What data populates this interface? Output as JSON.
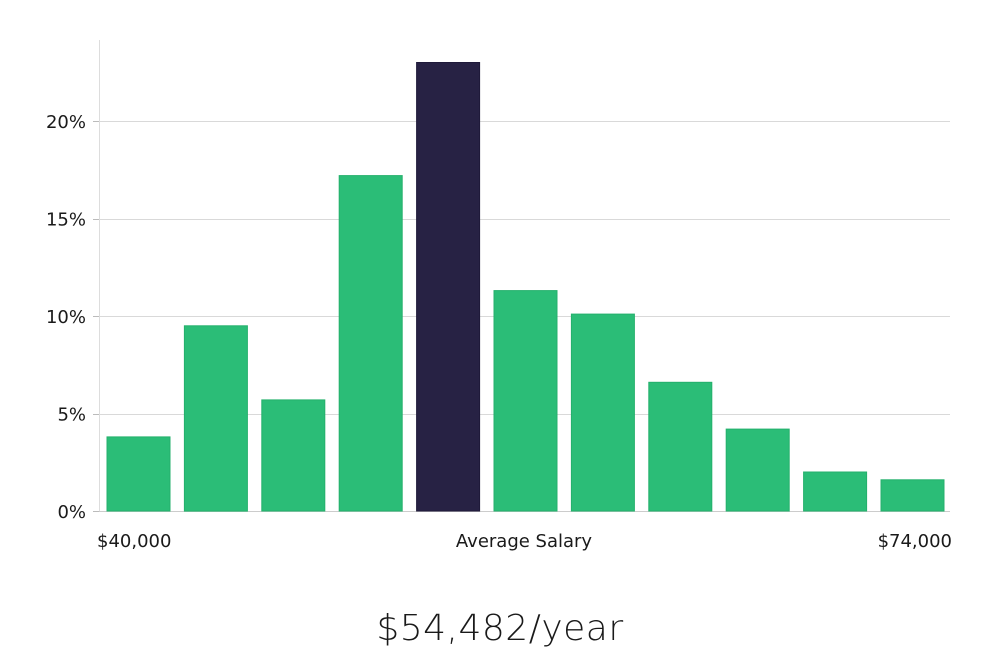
{
  "colors": {
    "bar": "#2bbd77",
    "highlight_bar": "#272244",
    "grid": "#d9d9d9",
    "axis": "#cccccc",
    "text": "#1a1a1a"
  },
  "chart_data": {
    "type": "bar",
    "categories": [
      "1",
      "2",
      "3",
      "4",
      "5",
      "6",
      "7",
      "8",
      "9",
      "10",
      "11"
    ],
    "values": [
      3.8,
      9.5,
      5.7,
      17.2,
      23.0,
      11.3,
      10.1,
      6.6,
      4.2,
      2.0,
      1.6
    ],
    "highlight_index": 4,
    "ylim": [
      0,
      24
    ],
    "yticks": [
      0,
      5,
      10,
      15,
      20
    ],
    "ytick_labels": [
      "0%",
      "5%",
      "10%",
      "15%",
      "20%"
    ],
    "xtick_labels": {
      "left": "$40,000",
      "center": "Average Salary",
      "right": "$74,000"
    },
    "grid": true,
    "xlabel": "",
    "ylabel": "",
    "title": ""
  },
  "average": {
    "value_text": "$54,482/year"
  }
}
